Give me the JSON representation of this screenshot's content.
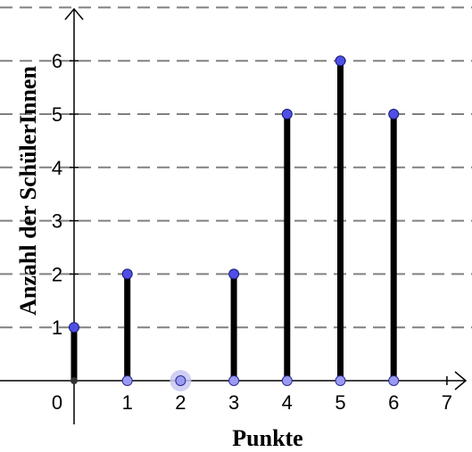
{
  "chart_data": {
    "type": "bar",
    "title": "",
    "xlabel": "Punkte",
    "ylabel": "Anzahl der SchülerInnen",
    "categories": [
      0,
      1,
      2,
      3,
      4,
      5,
      6
    ],
    "values": [
      1,
      2,
      0,
      2,
      5,
      6,
      5
    ],
    "xlim": [
      0,
      7
    ],
    "ylim": [
      0,
      6
    ],
    "x_ticks": [
      "0",
      "1",
      "2",
      "3",
      "4",
      "5",
      "6",
      "7"
    ],
    "y_ticks": [
      "1",
      "2",
      "3",
      "4",
      "5",
      "6"
    ],
    "grid": "horizontal dashed",
    "colors": {
      "bar": "#000000",
      "point_top": "#4f4fe8",
      "point_base": "#9a9af2",
      "grid": "#808080",
      "axis": "#000000"
    }
  }
}
